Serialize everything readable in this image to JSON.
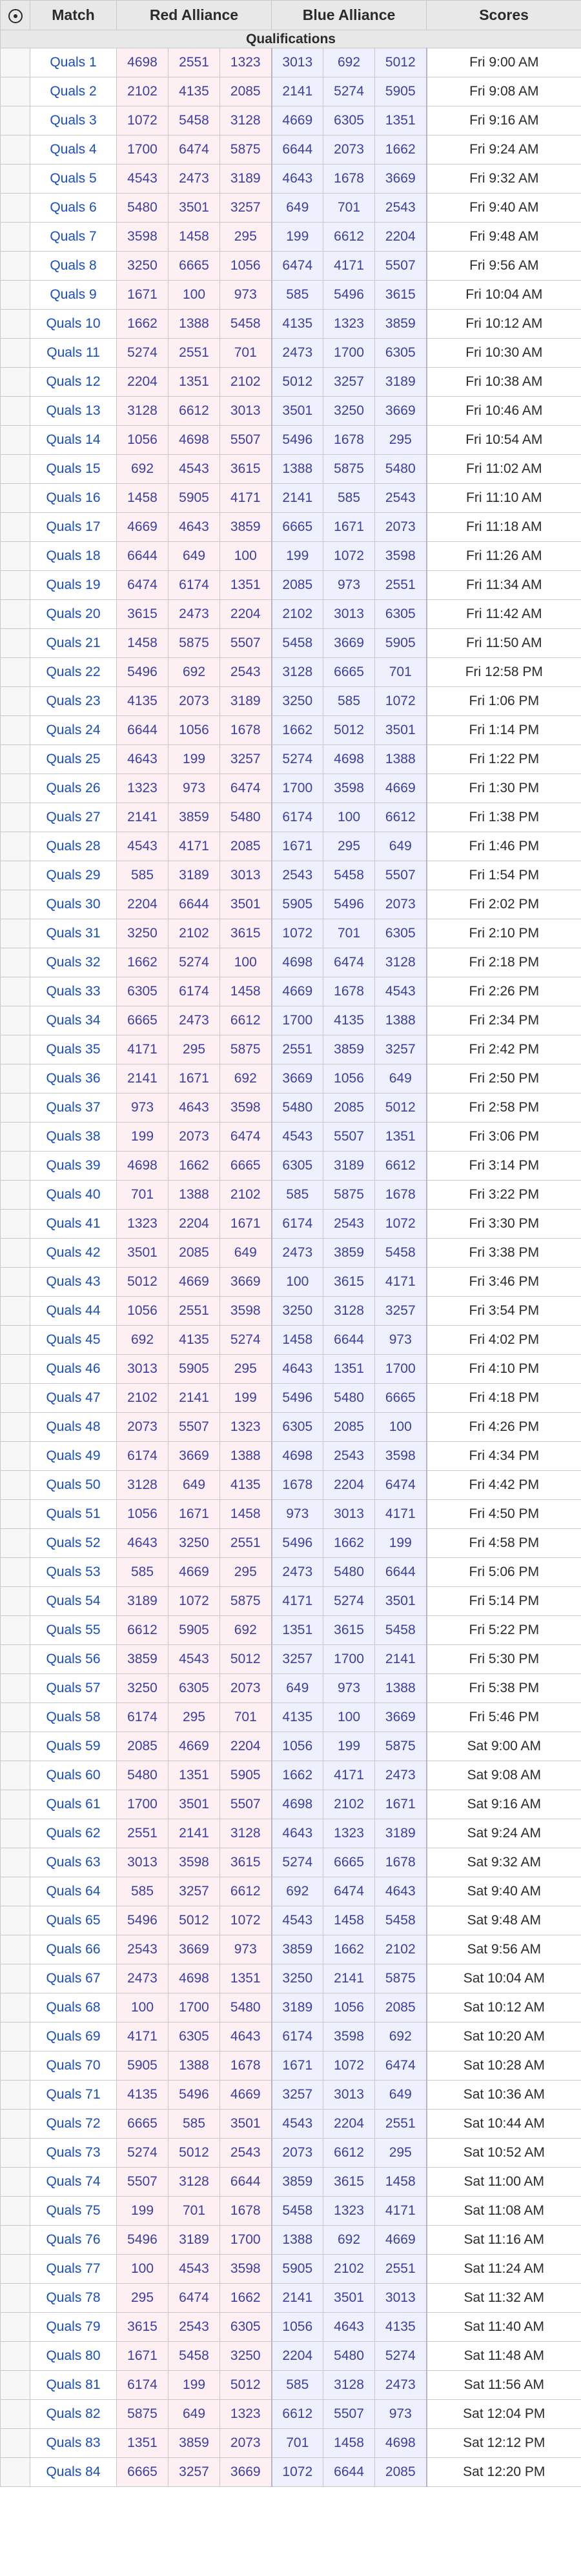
{
  "headers": {
    "match": "Match",
    "red": "Red Alliance",
    "blue": "Blue Alliance",
    "scores": "Scores"
  },
  "section_label": "Qualifications",
  "matches": [
    {
      "label": "Quals 1",
      "red": [
        "4698",
        "2551",
        "1323"
      ],
      "blue": [
        "3013",
        "692",
        "5012"
      ],
      "time": "Fri 9:00 AM"
    },
    {
      "label": "Quals 2",
      "red": [
        "2102",
        "4135",
        "2085"
      ],
      "blue": [
        "2141",
        "5274",
        "5905"
      ],
      "time": "Fri 9:08 AM"
    },
    {
      "label": "Quals 3",
      "red": [
        "1072",
        "5458",
        "3128"
      ],
      "blue": [
        "4669",
        "6305",
        "1351"
      ],
      "time": "Fri 9:16 AM"
    },
    {
      "label": "Quals 4",
      "red": [
        "1700",
        "6474",
        "5875"
      ],
      "blue": [
        "6644",
        "2073",
        "1662"
      ],
      "time": "Fri 9:24 AM"
    },
    {
      "label": "Quals 5",
      "red": [
        "4543",
        "2473",
        "3189"
      ],
      "blue": [
        "4643",
        "1678",
        "3669"
      ],
      "time": "Fri 9:32 AM"
    },
    {
      "label": "Quals 6",
      "red": [
        "5480",
        "3501",
        "3257"
      ],
      "blue": [
        "649",
        "701",
        "2543"
      ],
      "time": "Fri 9:40 AM"
    },
    {
      "label": "Quals 7",
      "red": [
        "3598",
        "1458",
        "295"
      ],
      "blue": [
        "199",
        "6612",
        "2204"
      ],
      "time": "Fri 9:48 AM"
    },
    {
      "label": "Quals 8",
      "red": [
        "3250",
        "6665",
        "1056"
      ],
      "blue": [
        "6474",
        "4171",
        "5507"
      ],
      "time": "Fri 9:56 AM"
    },
    {
      "label": "Quals 9",
      "red": [
        "1671",
        "100",
        "973"
      ],
      "blue": [
        "585",
        "5496",
        "3615"
      ],
      "time": "Fri 10:04 AM"
    },
    {
      "label": "Quals 10",
      "red": [
        "1662",
        "1388",
        "5458"
      ],
      "blue": [
        "4135",
        "1323",
        "3859"
      ],
      "time": "Fri 10:12 AM"
    },
    {
      "label": "Quals 11",
      "red": [
        "5274",
        "2551",
        "701"
      ],
      "blue": [
        "2473",
        "1700",
        "6305"
      ],
      "time": "Fri 10:30 AM"
    },
    {
      "label": "Quals 12",
      "red": [
        "2204",
        "1351",
        "2102"
      ],
      "blue": [
        "5012",
        "3257",
        "3189"
      ],
      "time": "Fri 10:38 AM"
    },
    {
      "label": "Quals 13",
      "red": [
        "3128",
        "6612",
        "3013"
      ],
      "blue": [
        "3501",
        "3250",
        "3669"
      ],
      "time": "Fri 10:46 AM"
    },
    {
      "label": "Quals 14",
      "red": [
        "1056",
        "4698",
        "5507"
      ],
      "blue": [
        "5496",
        "1678",
        "295"
      ],
      "time": "Fri 10:54 AM"
    },
    {
      "label": "Quals 15",
      "red": [
        "692",
        "4543",
        "3615"
      ],
      "blue": [
        "1388",
        "5875",
        "5480"
      ],
      "time": "Fri 11:02 AM"
    },
    {
      "label": "Quals 16",
      "red": [
        "1458",
        "5905",
        "4171"
      ],
      "blue": [
        "2141",
        "585",
        "2543"
      ],
      "time": "Fri 11:10 AM"
    },
    {
      "label": "Quals 17",
      "red": [
        "4669",
        "4643",
        "3859"
      ],
      "blue": [
        "6665",
        "1671",
        "2073"
      ],
      "time": "Fri 11:18 AM"
    },
    {
      "label": "Quals 18",
      "red": [
        "6644",
        "649",
        "100"
      ],
      "blue": [
        "199",
        "1072",
        "3598"
      ],
      "time": "Fri 11:26 AM"
    },
    {
      "label": "Quals 19",
      "red": [
        "6474",
        "6174",
        "1351"
      ],
      "blue": [
        "2085",
        "973",
        "2551"
      ],
      "time": "Fri 11:34 AM"
    },
    {
      "label": "Quals 20",
      "red": [
        "3615",
        "2473",
        "2204"
      ],
      "blue": [
        "2102",
        "3013",
        "6305"
      ],
      "time": "Fri 11:42 AM"
    },
    {
      "label": "Quals 21",
      "red": [
        "1458",
        "5875",
        "5507"
      ],
      "blue": [
        "5458",
        "3669",
        "5905"
      ],
      "time": "Fri 11:50 AM"
    },
    {
      "label": "Quals 22",
      "red": [
        "5496",
        "692",
        "2543"
      ],
      "blue": [
        "3128",
        "6665",
        "701"
      ],
      "time": "Fri 12:58 PM"
    },
    {
      "label": "Quals 23",
      "red": [
        "4135",
        "2073",
        "3189"
      ],
      "blue": [
        "3250",
        "585",
        "1072"
      ],
      "time": "Fri 1:06 PM"
    },
    {
      "label": "Quals 24",
      "red": [
        "6644",
        "1056",
        "1678"
      ],
      "blue": [
        "1662",
        "5012",
        "3501"
      ],
      "time": "Fri 1:14 PM"
    },
    {
      "label": "Quals 25",
      "red": [
        "4643",
        "199",
        "3257"
      ],
      "blue": [
        "5274",
        "4698",
        "1388"
      ],
      "time": "Fri 1:22 PM"
    },
    {
      "label": "Quals 26",
      "red": [
        "1323",
        "973",
        "6474"
      ],
      "blue": [
        "1700",
        "3598",
        "4669"
      ],
      "time": "Fri 1:30 PM"
    },
    {
      "label": "Quals 27",
      "red": [
        "2141",
        "3859",
        "5480"
      ],
      "blue": [
        "6174",
        "100",
        "6612"
      ],
      "time": "Fri 1:38 PM"
    },
    {
      "label": "Quals 28",
      "red": [
        "4543",
        "4171",
        "2085"
      ],
      "blue": [
        "1671",
        "295",
        "649"
      ],
      "time": "Fri 1:46 PM"
    },
    {
      "label": "Quals 29",
      "red": [
        "585",
        "3189",
        "3013"
      ],
      "blue": [
        "2543",
        "5458",
        "5507"
      ],
      "time": "Fri 1:54 PM"
    },
    {
      "label": "Quals 30",
      "red": [
        "2204",
        "6644",
        "3501"
      ],
      "blue": [
        "5905",
        "5496",
        "2073"
      ],
      "time": "Fri 2:02 PM"
    },
    {
      "label": "Quals 31",
      "red": [
        "3250",
        "2102",
        "3615"
      ],
      "blue": [
        "1072",
        "701",
        "6305"
      ],
      "time": "Fri 2:10 PM"
    },
    {
      "label": "Quals 32",
      "red": [
        "1662",
        "5274",
        "100"
      ],
      "blue": [
        "4698",
        "6474",
        "3128"
      ],
      "time": "Fri 2:18 PM"
    },
    {
      "label": "Quals 33",
      "red": [
        "6305",
        "6174",
        "1458"
      ],
      "blue": [
        "4669",
        "1678",
        "4543"
      ],
      "time": "Fri 2:26 PM"
    },
    {
      "label": "Quals 34",
      "red": [
        "6665",
        "2473",
        "6612"
      ],
      "blue": [
        "1700",
        "4135",
        "1388"
      ],
      "time": "Fri 2:34 PM"
    },
    {
      "label": "Quals 35",
      "red": [
        "4171",
        "295",
        "5875"
      ],
      "blue": [
        "2551",
        "3859",
        "3257"
      ],
      "time": "Fri 2:42 PM"
    },
    {
      "label": "Quals 36",
      "red": [
        "2141",
        "1671",
        "692"
      ],
      "blue": [
        "3669",
        "1056",
        "649"
      ],
      "time": "Fri 2:50 PM"
    },
    {
      "label": "Quals 37",
      "red": [
        "973",
        "4643",
        "3598"
      ],
      "blue": [
        "5480",
        "2085",
        "5012"
      ],
      "time": "Fri 2:58 PM"
    },
    {
      "label": "Quals 38",
      "red": [
        "199",
        "2073",
        "6474"
      ],
      "blue": [
        "4543",
        "5507",
        "1351"
      ],
      "time": "Fri 3:06 PM"
    },
    {
      "label": "Quals 39",
      "red": [
        "4698",
        "1662",
        "6665"
      ],
      "blue": [
        "6305",
        "3189",
        "6612"
      ],
      "time": "Fri 3:14 PM"
    },
    {
      "label": "Quals 40",
      "red": [
        "701",
        "1388",
        "2102"
      ],
      "blue": [
        "585",
        "5875",
        "1678"
      ],
      "time": "Fri 3:22 PM"
    },
    {
      "label": "Quals 41",
      "red": [
        "1323",
        "2204",
        "1671"
      ],
      "blue": [
        "6174",
        "2543",
        "1072"
      ],
      "time": "Fri 3:30 PM"
    },
    {
      "label": "Quals 42",
      "red": [
        "3501",
        "2085",
        "649"
      ],
      "blue": [
        "2473",
        "3859",
        "5458"
      ],
      "time": "Fri 3:38 PM"
    },
    {
      "label": "Quals 43",
      "red": [
        "5012",
        "4669",
        "3669"
      ],
      "blue": [
        "100",
        "3615",
        "4171"
      ],
      "time": "Fri 3:46 PM"
    },
    {
      "label": "Quals 44",
      "red": [
        "1056",
        "2551",
        "3598"
      ],
      "blue": [
        "3250",
        "3128",
        "3257"
      ],
      "time": "Fri 3:54 PM"
    },
    {
      "label": "Quals 45",
      "red": [
        "692",
        "4135",
        "5274"
      ],
      "blue": [
        "1458",
        "6644",
        "973"
      ],
      "time": "Fri 4:02 PM"
    },
    {
      "label": "Quals 46",
      "red": [
        "3013",
        "5905",
        "295"
      ],
      "blue": [
        "4643",
        "1351",
        "1700"
      ],
      "time": "Fri 4:10 PM"
    },
    {
      "label": "Quals 47",
      "red": [
        "2102",
        "2141",
        "199"
      ],
      "blue": [
        "5496",
        "5480",
        "6665"
      ],
      "time": "Fri 4:18 PM"
    },
    {
      "label": "Quals 48",
      "red": [
        "2073",
        "5507",
        "1323"
      ],
      "blue": [
        "6305",
        "2085",
        "100"
      ],
      "time": "Fri 4:26 PM"
    },
    {
      "label": "Quals 49",
      "red": [
        "6174",
        "3669",
        "1388"
      ],
      "blue": [
        "4698",
        "2543",
        "3598"
      ],
      "time": "Fri 4:34 PM"
    },
    {
      "label": "Quals 50",
      "red": [
        "3128",
        "649",
        "4135"
      ],
      "blue": [
        "1678",
        "2204",
        "6474"
      ],
      "time": "Fri 4:42 PM"
    },
    {
      "label": "Quals 51",
      "red": [
        "1056",
        "1671",
        "1458"
      ],
      "blue": [
        "973",
        "3013",
        "4171"
      ],
      "time": "Fri 4:50 PM"
    },
    {
      "label": "Quals 52",
      "red": [
        "4643",
        "3250",
        "2551"
      ],
      "blue": [
        "5496",
        "1662",
        "199"
      ],
      "time": "Fri 4:58 PM"
    },
    {
      "label": "Quals 53",
      "red": [
        "585",
        "4669",
        "295"
      ],
      "blue": [
        "2473",
        "5480",
        "6644"
      ],
      "time": "Fri 5:06 PM"
    },
    {
      "label": "Quals 54",
      "red": [
        "3189",
        "1072",
        "5875"
      ],
      "blue": [
        "4171",
        "5274",
        "3501"
      ],
      "time": "Fri 5:14 PM"
    },
    {
      "label": "Quals 55",
      "red": [
        "6612",
        "5905",
        "692"
      ],
      "blue": [
        "1351",
        "3615",
        "5458"
      ],
      "time": "Fri 5:22 PM"
    },
    {
      "label": "Quals 56",
      "red": [
        "3859",
        "4543",
        "5012"
      ],
      "blue": [
        "3257",
        "1700",
        "2141"
      ],
      "time": "Fri 5:30 PM"
    },
    {
      "label": "Quals 57",
      "red": [
        "3250",
        "6305",
        "2073"
      ],
      "blue": [
        "649",
        "973",
        "1388"
      ],
      "time": "Fri 5:38 PM"
    },
    {
      "label": "Quals 58",
      "red": [
        "6174",
        "295",
        "701"
      ],
      "blue": [
        "4135",
        "100",
        "3669"
      ],
      "time": "Fri 5:46 PM"
    },
    {
      "label": "Quals 59",
      "red": [
        "2085",
        "4669",
        "2204"
      ],
      "blue": [
        "1056",
        "199",
        "5875"
      ],
      "time": "Sat 9:00 AM"
    },
    {
      "label": "Quals 60",
      "red": [
        "5480",
        "1351",
        "5905"
      ],
      "blue": [
        "1662",
        "4171",
        "2473"
      ],
      "time": "Sat 9:08 AM"
    },
    {
      "label": "Quals 61",
      "red": [
        "1700",
        "3501",
        "5507"
      ],
      "blue": [
        "4698",
        "2102",
        "1671"
      ],
      "time": "Sat 9:16 AM"
    },
    {
      "label": "Quals 62",
      "red": [
        "2551",
        "2141",
        "3128"
      ],
      "blue": [
        "4643",
        "1323",
        "3189"
      ],
      "time": "Sat 9:24 AM"
    },
    {
      "label": "Quals 63",
      "red": [
        "3013",
        "3598",
        "3615"
      ],
      "blue": [
        "5274",
        "6665",
        "1678"
      ],
      "time": "Sat 9:32 AM"
    },
    {
      "label": "Quals 64",
      "red": [
        "585",
        "3257",
        "6612"
      ],
      "blue": [
        "692",
        "6474",
        "4643"
      ],
      "time": "Sat 9:40 AM"
    },
    {
      "label": "Quals 65",
      "red": [
        "5496",
        "5012",
        "1072"
      ],
      "blue": [
        "4543",
        "1458",
        "5458"
      ],
      "time": "Sat 9:48 AM"
    },
    {
      "label": "Quals 66",
      "red": [
        "2543",
        "3669",
        "973"
      ],
      "blue": [
        "3859",
        "1662",
        "2102"
      ],
      "time": "Sat 9:56 AM"
    },
    {
      "label": "Quals 67",
      "red": [
        "2473",
        "4698",
        "1351"
      ],
      "blue": [
        "3250",
        "2141",
        "5875"
      ],
      "time": "Sat 10:04 AM"
    },
    {
      "label": "Quals 68",
      "red": [
        "100",
        "1700",
        "5480"
      ],
      "blue": [
        "3189",
        "1056",
        "2085"
      ],
      "time": "Sat 10:12 AM"
    },
    {
      "label": "Quals 69",
      "red": [
        "4171",
        "6305",
        "4643"
      ],
      "blue": [
        "6174",
        "3598",
        "692"
      ],
      "time": "Sat 10:20 AM"
    },
    {
      "label": "Quals 70",
      "red": [
        "5905",
        "1388",
        "1678"
      ],
      "blue": [
        "1671",
        "1072",
        "6474"
      ],
      "time": "Sat 10:28 AM"
    },
    {
      "label": "Quals 71",
      "red": [
        "4135",
        "5496",
        "4669"
      ],
      "blue": [
        "3257",
        "3013",
        "649"
      ],
      "time": "Sat 10:36 AM"
    },
    {
      "label": "Quals 72",
      "red": [
        "6665",
        "585",
        "3501"
      ],
      "blue": [
        "4543",
        "2204",
        "2551"
      ],
      "time": "Sat 10:44 AM"
    },
    {
      "label": "Quals 73",
      "red": [
        "5274",
        "5012",
        "2543"
      ],
      "blue": [
        "2073",
        "6612",
        "295"
      ],
      "time": "Sat 10:52 AM"
    },
    {
      "label": "Quals 74",
      "red": [
        "5507",
        "3128",
        "6644"
      ],
      "blue": [
        "3859",
        "3615",
        "1458"
      ],
      "time": "Sat 11:00 AM"
    },
    {
      "label": "Quals 75",
      "red": [
        "199",
        "701",
        "1678"
      ],
      "blue": [
        "5458",
        "1323",
        "4171"
      ],
      "time": "Sat 11:08 AM"
    },
    {
      "label": "Quals 76",
      "red": [
        "5496",
        "3189",
        "1700"
      ],
      "blue": [
        "1388",
        "692",
        "4669"
      ],
      "time": "Sat 11:16 AM"
    },
    {
      "label": "Quals 77",
      "red": [
        "100",
        "4543",
        "3598"
      ],
      "blue": [
        "5905",
        "2102",
        "2551"
      ],
      "time": "Sat 11:24 AM"
    },
    {
      "label": "Quals 78",
      "red": [
        "295",
        "6474",
        "1662"
      ],
      "blue": [
        "2141",
        "3501",
        "3013"
      ],
      "time": "Sat 11:32 AM"
    },
    {
      "label": "Quals 79",
      "red": [
        "3615",
        "2543",
        "6305"
      ],
      "blue": [
        "1056",
        "4643",
        "4135"
      ],
      "time": "Sat 11:40 AM"
    },
    {
      "label": "Quals 80",
      "red": [
        "1671",
        "5458",
        "3250"
      ],
      "blue": [
        "2204",
        "5480",
        "5274"
      ],
      "time": "Sat 11:48 AM"
    },
    {
      "label": "Quals 81",
      "red": [
        "6174",
        "199",
        "5012"
      ],
      "blue": [
        "585",
        "3128",
        "2473"
      ],
      "time": "Sat 11:56 AM"
    },
    {
      "label": "Quals 82",
      "red": [
        "5875",
        "649",
        "1323"
      ],
      "blue": [
        "6612",
        "5507",
        "973"
      ],
      "time": "Sat 12:04 PM"
    },
    {
      "label": "Quals 83",
      "red": [
        "1351",
        "3859",
        "2073"
      ],
      "blue": [
        "701",
        "1458",
        "4698"
      ],
      "time": "Sat 12:12 PM"
    },
    {
      "label": "Quals 84",
      "red": [
        "6665",
        "3257",
        "3669"
      ],
      "blue": [
        "1072",
        "6644",
        "2085"
      ],
      "time": "Sat 12:20 PM"
    }
  ]
}
